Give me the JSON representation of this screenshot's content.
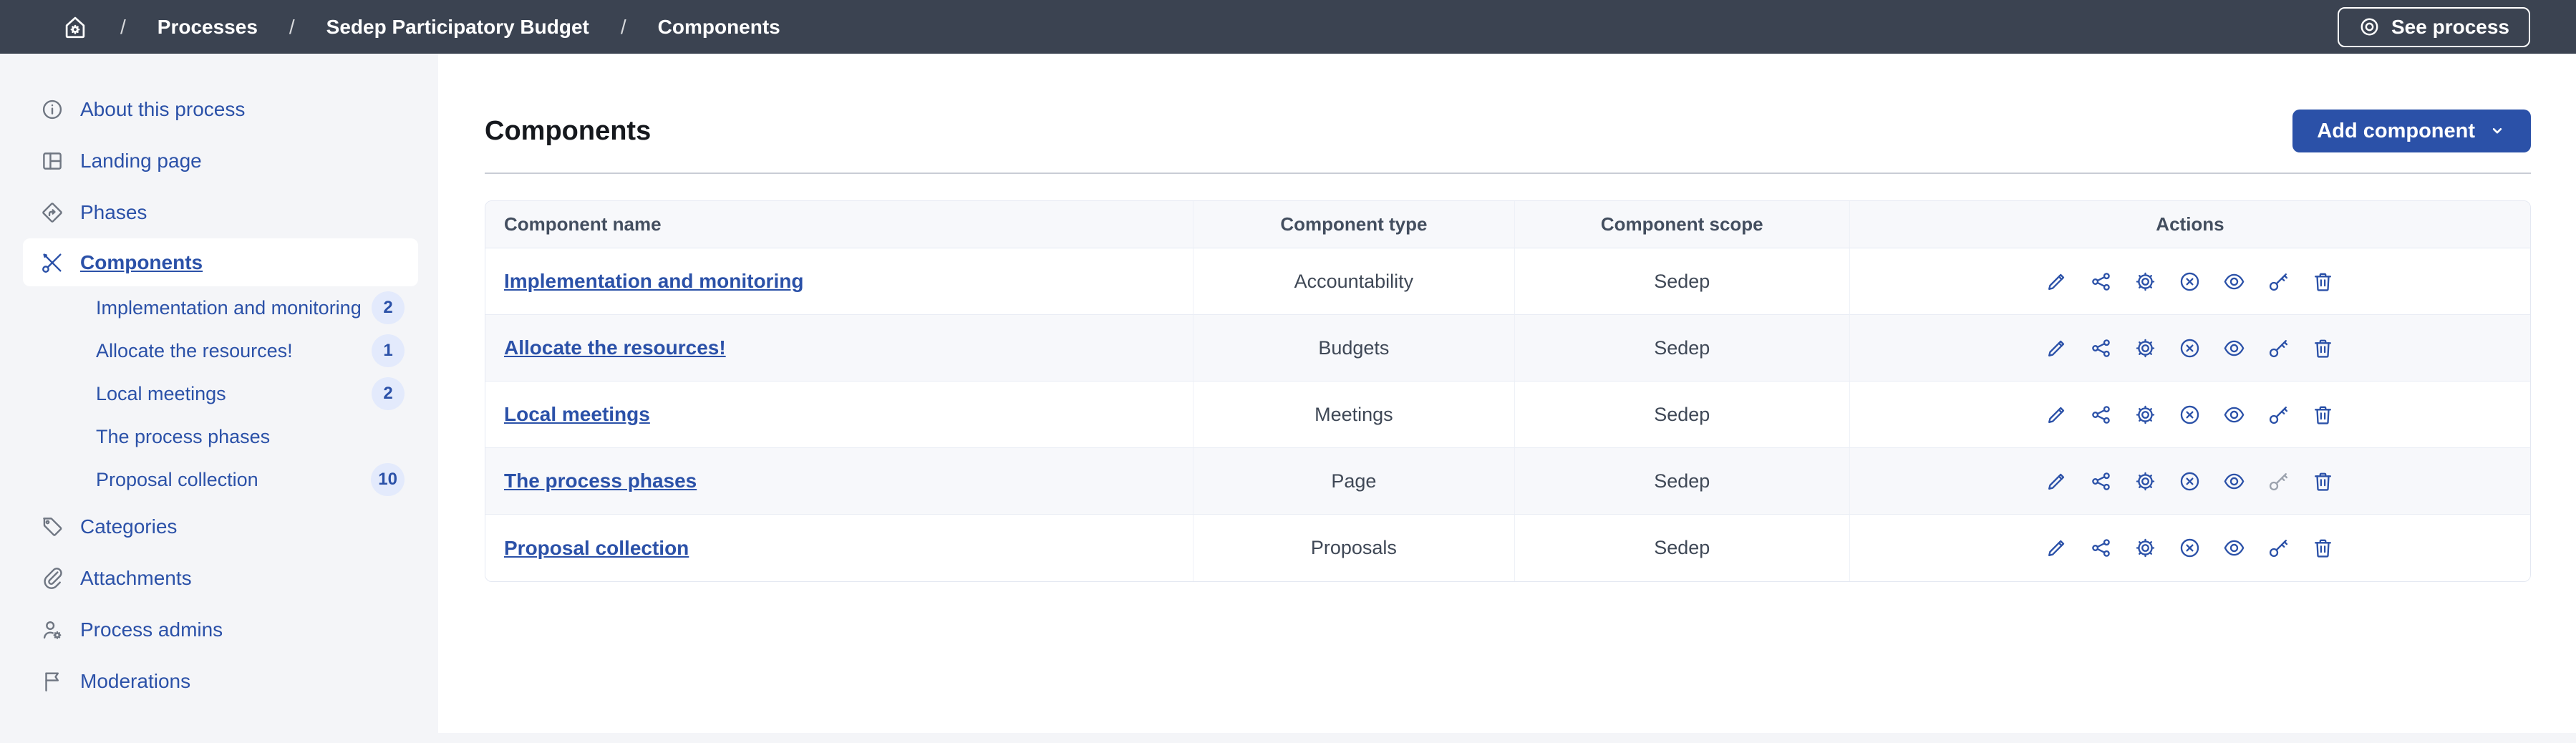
{
  "topbar": {
    "breadcrumb": [
      "Processes",
      "Sedep Participatory Budget",
      "Components"
    ],
    "see_process_label": "See process"
  },
  "sidebar": {
    "items": [
      {
        "key": "about-this-process",
        "icon": "info",
        "label": "About this process"
      },
      {
        "key": "landing-page",
        "icon": "layout",
        "label": "Landing page"
      },
      {
        "key": "phases",
        "icon": "direction",
        "label": "Phases"
      },
      {
        "key": "components",
        "icon": "tools",
        "label": "Components",
        "active": true,
        "children": [
          {
            "label": "Implementation and monitoring",
            "count": 2
          },
          {
            "label": "Allocate the resources!",
            "count": 1
          },
          {
            "label": "Local meetings",
            "count": 2
          },
          {
            "label": "The process phases",
            "count": null
          },
          {
            "label": "Proposal collection",
            "count": 10
          }
        ]
      },
      {
        "key": "categories",
        "icon": "tag",
        "label": "Categories"
      },
      {
        "key": "attachments",
        "icon": "paperclip",
        "label": "Attachments"
      },
      {
        "key": "process-admins",
        "icon": "user-gear",
        "label": "Process admins"
      },
      {
        "key": "moderations",
        "icon": "flag",
        "label": "Moderations"
      }
    ]
  },
  "main": {
    "title": "Components",
    "add_component_label": "Add component",
    "table": {
      "columns": [
        "Component name",
        "Component type",
        "Component scope",
        "Actions"
      ],
      "actions": [
        {
          "id": "edit",
          "icon": "pencil"
        },
        {
          "id": "share",
          "icon": "share"
        },
        {
          "id": "configure",
          "icon": "gear"
        },
        {
          "id": "unpublish",
          "icon": "close-circle"
        },
        {
          "id": "preview",
          "icon": "eye"
        },
        {
          "id": "permissions",
          "icon": "key"
        },
        {
          "id": "delete",
          "icon": "trash"
        }
      ],
      "rows": [
        {
          "name": "Implementation and monitoring",
          "type": "Accountability",
          "scope": "Sedep",
          "permissions_disabled": false
        },
        {
          "name": "Allocate the resources!",
          "type": "Budgets",
          "scope": "Sedep",
          "permissions_disabled": false
        },
        {
          "name": "Local meetings",
          "type": "Meetings",
          "scope": "Sedep",
          "permissions_disabled": false
        },
        {
          "name": "The process phases",
          "type": "Page",
          "scope": "Sedep",
          "permissions_disabled": true
        },
        {
          "name": "Proposal collection",
          "type": "Proposals",
          "scope": "Sedep",
          "permissions_disabled": false
        }
      ]
    }
  },
  "colors": {
    "topbar_bg": "#3b4351",
    "primary": "#2b51a8",
    "sidebar_bg": "#f4f5f8",
    "badge_bg": "#e3eafc",
    "disabled_icon": "#9ba2ad",
    "row_alt": "#f7f8fb"
  }
}
